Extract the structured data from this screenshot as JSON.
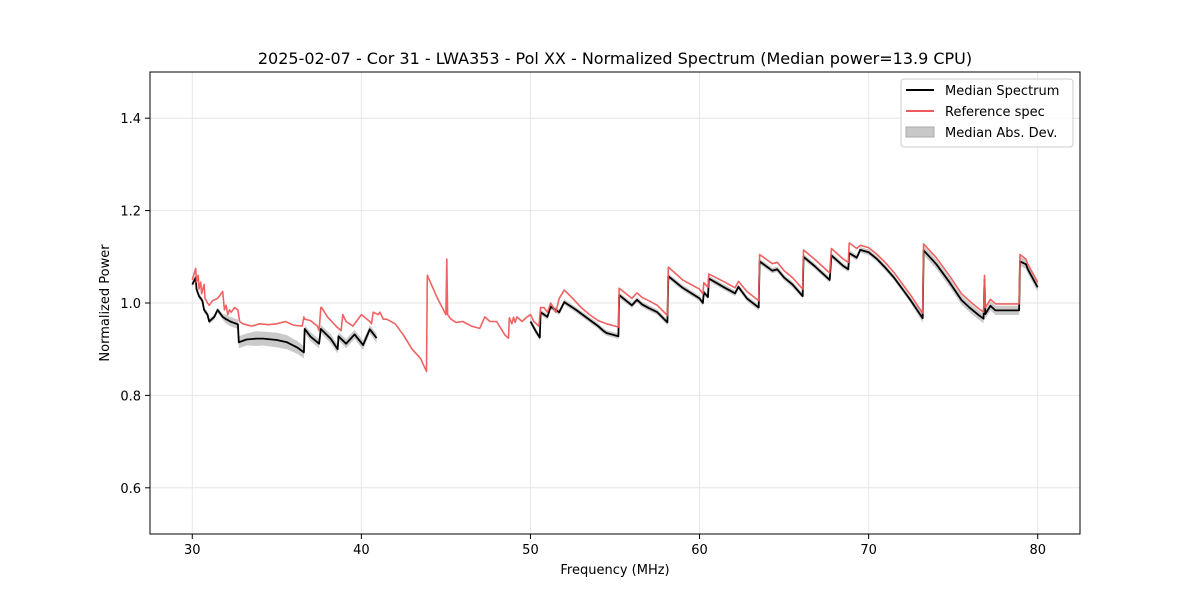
{
  "chart_data": {
    "type": "line",
    "title": "2025-02-07 - Cor 31 - LWA353 - Pol XX - Normalized Spectrum (Median power=13.9 CPU)",
    "xlabel": "Frequency (MHz)",
    "ylabel": "Normalized Power",
    "xlim": [
      27.5,
      82.5
    ],
    "ylim": [
      0.5,
      1.5
    ],
    "xticks": [
      30,
      40,
      50,
      60,
      70,
      80
    ],
    "yticks": [
      0.6,
      0.8,
      1.0,
      1.2,
      1.4
    ],
    "xtick_labels": [
      "30",
      "40",
      "50",
      "60",
      "70",
      "80"
    ],
    "ytick_labels": [
      "0.6",
      "0.8",
      "1.0",
      "1.2",
      "1.4"
    ],
    "grid": true,
    "legend_position": "top-right",
    "series": [
      {
        "name": "Median Abs. Dev.",
        "kind": "band",
        "color": "#b0b0b0",
        "segments": [
          {
            "x": [
              30.0,
              30.2,
              30.25,
              30.4,
              30.6,
              30.7,
              30.9,
              31.0,
              31.3,
              31.5,
              31.8,
              32.0,
              32.3,
              32.7,
              32.75,
              33.2,
              33.8,
              34.2,
              35.0,
              35.6,
              36.2,
              36.6,
              36.65,
              37.0,
              37.5,
              37.6,
              38.2,
              38.6,
              38.65,
              39.1,
              39.6,
              40.1,
              40.5,
              40.9
            ],
            "lower": [
              1.034,
              1.049,
              1.024,
              1.009,
              0.999,
              0.979,
              0.969,
              0.954,
              0.964,
              0.979,
              0.964,
              0.955,
              0.949,
              0.944,
              0.902,
              0.908,
              0.907,
              0.908,
              0.904,
              0.9,
              0.89,
              0.88,
              0.935,
              0.917,
              0.902,
              0.935,
              0.912,
              0.89,
              0.919,
              0.902,
              0.922,
              0.899,
              0.934,
              0.914
            ],
            "upper": [
              1.046,
              1.061,
              1.036,
              1.021,
              1.011,
              0.991,
              0.981,
              0.966,
              0.976,
              0.991,
              0.976,
              0.975,
              0.969,
              0.964,
              0.928,
              0.934,
              0.939,
              0.938,
              0.936,
              0.93,
              0.918,
              0.906,
              0.953,
              0.937,
              0.922,
              0.953,
              0.932,
              0.91,
              0.937,
              0.922,
              0.942,
              0.919,
              0.952,
              0.934
            ]
          },
          {
            "x": [
              50.0,
              50.3,
              50.55,
              50.6,
              51.0,
              51.2,
              51.7,
              52.0,
              52.7,
              54.0,
              54.3,
              54.5,
              55.2,
              55.25,
              56.0,
              56.3,
              56.6,
              57.0,
              57.5,
              58.1,
              58.15,
              59.0,
              60.0,
              60.2,
              60.25,
              60.5,
              60.55,
              61.5,
              62.1,
              62.3,
              62.8,
              63.5,
              63.55,
              64.3,
              64.6,
              65.0,
              65.5,
              66.1,
              66.15,
              66.8,
              67.7,
              67.8,
              68.5,
              68.8,
              68.85,
              69.3,
              69.5,
              70.0,
              70.5,
              71.0,
              71.5,
              72.0,
              72.5,
              73.2,
              73.25,
              74.0,
              74.8,
              75.5,
              76.0,
              76.5,
              76.8,
              76.85,
              76.9,
              77.2,
              77.5,
              78.3,
              78.9,
              78.95,
              79.3,
              79.4,
              80.0
            ],
            "lower": [
              0.954,
              0.934,
              0.919,
              0.974,
              0.964,
              0.986,
              0.974,
              0.996,
              0.979,
              0.944,
              0.934,
              0.929,
              0.922,
              1.011,
              0.989,
              1.001,
              0.991,
              0.983,
              0.974,
              0.952,
              1.052,
              1.027,
              1.004,
              0.994,
              1.017,
              1.007,
              1.047,
              1.027,
              1.015,
              1.029,
              1.004,
              0.984,
              1.084,
              1.064,
              1.067,
              1.049,
              1.034,
              1.009,
              1.094,
              1.074,
              1.044,
              1.097,
              1.074,
              1.067,
              1.102,
              1.092,
              1.109,
              1.104,
              1.089,
              1.07,
              1.049,
              1.024,
              0.999,
              0.957,
              1.104,
              1.074,
              1.034,
              0.996,
              0.979,
              0.964,
              0.956,
              1.04,
              0.966,
              0.984,
              0.974,
              0.974,
              0.974,
              1.08,
              1.074,
              1.064,
              1.024
            ],
            "upper": [
              0.966,
              0.946,
              0.931,
              0.986,
              0.976,
              0.998,
              0.986,
              1.008,
              0.991,
              0.956,
              0.946,
              0.941,
              0.934,
              1.023,
              1.001,
              1.013,
              1.003,
              0.995,
              0.986,
              0.964,
              1.064,
              1.039,
              1.016,
              1.006,
              1.029,
              1.019,
              1.059,
              1.039,
              1.027,
              1.041,
              1.016,
              0.996,
              1.096,
              1.076,
              1.079,
              1.061,
              1.046,
              1.021,
              1.106,
              1.086,
              1.056,
              1.109,
              1.086,
              1.079,
              1.114,
              1.104,
              1.121,
              1.116,
              1.101,
              1.082,
              1.061,
              1.036,
              1.011,
              0.977,
              1.124,
              1.094,
              1.054,
              1.016,
              0.999,
              0.984,
              0.976,
              1.06,
              0.986,
              1.004,
              0.994,
              0.994,
              0.994,
              1.1,
              1.094,
              1.084,
              1.044
            ]
          }
        ]
      },
      {
        "name": "Median Spectrum",
        "kind": "line",
        "color": "#000000",
        "segments": [
          {
            "x": [
              30.0,
              30.2,
              30.25,
              30.4,
              30.6,
              30.7,
              30.9,
              31.0,
              31.3,
              31.5,
              31.8,
              32.0,
              32.3,
              32.7,
              32.75,
              33.2,
              33.8,
              34.2,
              35.0,
              35.6,
              36.2,
              36.6,
              36.65,
              37.0,
              37.5,
              37.6,
              38.2,
              38.6,
              38.65,
              39.1,
              39.6,
              40.1,
              40.5,
              40.9
            ],
            "y": [
              1.04,
              1.055,
              1.03,
              1.015,
              1.005,
              0.985,
              0.975,
              0.96,
              0.97,
              0.985,
              0.97,
              0.965,
              0.959,
              0.954,
              0.915,
              0.921,
              0.923,
              0.923,
              0.92,
              0.915,
              0.904,
              0.893,
              0.944,
              0.927,
              0.912,
              0.944,
              0.922,
              0.9,
              0.928,
              0.912,
              0.932,
              0.909,
              0.943,
              0.924
            ]
          },
          {
            "x": [
              50.0,
              50.3,
              50.55,
              50.6,
              51.0,
              51.2,
              51.7,
              52.0,
              52.7,
              54.0,
              54.3,
              54.5,
              55.2,
              55.25,
              56.0,
              56.3,
              56.6,
              57.0,
              57.5,
              58.1,
              58.15,
              59.0,
              60.0,
              60.2,
              60.25,
              60.5,
              60.55,
              61.5,
              62.1,
              62.3,
              62.8,
              63.5,
              63.55,
              64.3,
              64.6,
              65.0,
              65.5,
              66.1,
              66.15,
              66.8,
              67.7,
              67.8,
              68.5,
              68.8,
              68.85,
              69.3,
              69.5,
              70.0,
              70.5,
              71.0,
              71.5,
              72.0,
              72.5,
              73.2,
              73.25,
              74.0,
              74.8,
              75.5,
              76.0,
              76.5,
              76.8,
              76.85,
              76.9,
              77.2,
              77.5,
              78.3,
              78.9,
              78.95,
              79.3,
              79.4,
              80.0
            ],
            "y": [
              0.96,
              0.94,
              0.925,
              0.98,
              0.97,
              0.992,
              0.98,
              1.002,
              0.985,
              0.95,
              0.94,
              0.935,
              0.928,
              1.017,
              0.995,
              1.007,
              0.997,
              0.989,
              0.98,
              0.958,
              1.058,
              1.033,
              1.01,
              1.0,
              1.023,
              1.013,
              1.053,
              1.033,
              1.021,
              1.035,
              1.01,
              0.99,
              1.09,
              1.07,
              1.073,
              1.055,
              1.04,
              1.015,
              1.1,
              1.08,
              1.05,
              1.103,
              1.08,
              1.073,
              1.108,
              1.098,
              1.115,
              1.11,
              1.095,
              1.076,
              1.055,
              1.03,
              1.005,
              0.967,
              1.114,
              1.084,
              1.044,
              1.006,
              0.989,
              0.974,
              0.966,
              1.05,
              0.976,
              0.994,
              0.984,
              0.984,
              0.984,
              1.09,
              1.084,
              1.074,
              1.034
            ]
          }
        ]
      },
      {
        "name": "Reference spec",
        "kind": "line",
        "color": "#f05a5a",
        "segments": [
          {
            "x": [
              30.0,
              30.2,
              30.25,
              30.35,
              30.4,
              30.5,
              30.55,
              30.7,
              30.75,
              30.9,
              31.0,
              31.2,
              31.5,
              31.8,
              31.9,
              32.0,
              32.1,
              32.2,
              32.3,
              32.5,
              32.7,
              32.8,
              33.0,
              33.5,
              34.0,
              34.5,
              35.0,
              35.5,
              36.0,
              36.5,
              36.6,
              36.65,
              37.0,
              37.4,
              37.5,
              37.6,
              37.65,
              38.0,
              38.5,
              38.8,
              38.9,
              39.1,
              39.5,
              40.0,
              40.5,
              40.6,
              40.7,
              41.0,
              41.1,
              41.3,
              41.5,
              42.0,
              42.5,
              43.0,
              43.5,
              43.85,
              43.9,
              44.5,
              45.0,
              45.05,
              45.1,
              45.3,
              45.6,
              46.0,
              46.5,
              47.0,
              47.3,
              47.6,
              48.0,
              48.5,
              48.7,
              48.75,
              48.9,
              49.0,
              49.1,
              49.2,
              49.5,
              49.8,
              50.0,
              50.2,
              50.5,
              50.6,
              50.8,
              51.0,
              51.2,
              51.5,
              51.7,
              52.0,
              52.5,
              53.0,
              53.5,
              54.0,
              54.5,
              55.2,
              55.25,
              56.0,
              56.3,
              56.6,
              57.0,
              57.5,
              58.1,
              58.15,
              59.0,
              60.0,
              60.2,
              60.25,
              60.5,
              60.55,
              61.5,
              62.1,
              62.3,
              62.8,
              63.5,
              63.55,
              64.3,
              64.6,
              65.0,
              65.5,
              66.1,
              66.15,
              66.8,
              67.7,
              67.8,
              68.5,
              68.8,
              68.85,
              69.3,
              69.5,
              70.0,
              70.5,
              71.0,
              71.5,
              72.0,
              72.5,
              73.2,
              73.25,
              74.0,
              74.8,
              75.5,
              76.0,
              76.5,
              76.8,
              76.85,
              76.9,
              77.2,
              77.5,
              78.3,
              78.9,
              78.95,
              79.3,
              79.4,
              80.0
            ],
            "y": [
              1.05,
              1.075,
              1.045,
              1.06,
              1.03,
              1.045,
              1.02,
              1.04,
              1.01,
              1.0,
              0.995,
              1.005,
              1.01,
              1.025,
              0.985,
              0.995,
              0.975,
              0.985,
              0.98,
              0.99,
              0.985,
              0.96,
              0.955,
              0.95,
              0.955,
              0.953,
              0.955,
              0.96,
              0.952,
              0.95,
              0.97,
              0.965,
              0.962,
              0.95,
              0.94,
              0.99,
              0.99,
              0.97,
              0.95,
              0.94,
              0.975,
              0.96,
              0.95,
              0.975,
              0.96,
              0.955,
              0.98,
              0.975,
              0.98,
              0.965,
              0.965,
              0.955,
              0.93,
              0.9,
              0.88,
              0.852,
              1.06,
              1.01,
              0.975,
              1.095,
              0.975,
              0.965,
              0.958,
              0.96,
              0.95,
              0.945,
              0.97,
              0.96,
              0.96,
              0.93,
              0.924,
              0.968,
              0.955,
              0.969,
              0.958,
              0.97,
              0.96,
              0.97,
              0.975,
              0.96,
              0.95,
              0.99,
              0.99,
              0.98,
              1.0,
              0.98,
              1.01,
              1.028,
              1.01,
              0.99,
              0.975,
              0.962,
              0.955,
              0.948,
              1.032,
              1.01,
              1.022,
              1.012,
              1.005,
              0.995,
              0.973,
              1.078,
              1.05,
              1.03,
              1.02,
              1.044,
              1.034,
              1.063,
              1.045,
              1.033,
              1.047,
              1.025,
              1.005,
              1.105,
              1.085,
              1.088,
              1.07,
              1.055,
              1.03,
              1.115,
              1.095,
              1.065,
              1.118,
              1.095,
              1.088,
              1.13,
              1.118,
              1.125,
              1.12,
              1.105,
              1.087,
              1.066,
              1.041,
              1.016,
              0.978,
              1.128,
              1.098,
              1.058,
              1.02,
              1.003,
              0.988,
              0.98,
              1.06,
              0.99,
              1.008,
              0.998,
              0.998,
              0.998,
              1.105,
              1.095,
              1.085,
              1.045
            ]
          }
        ]
      }
    ]
  }
}
